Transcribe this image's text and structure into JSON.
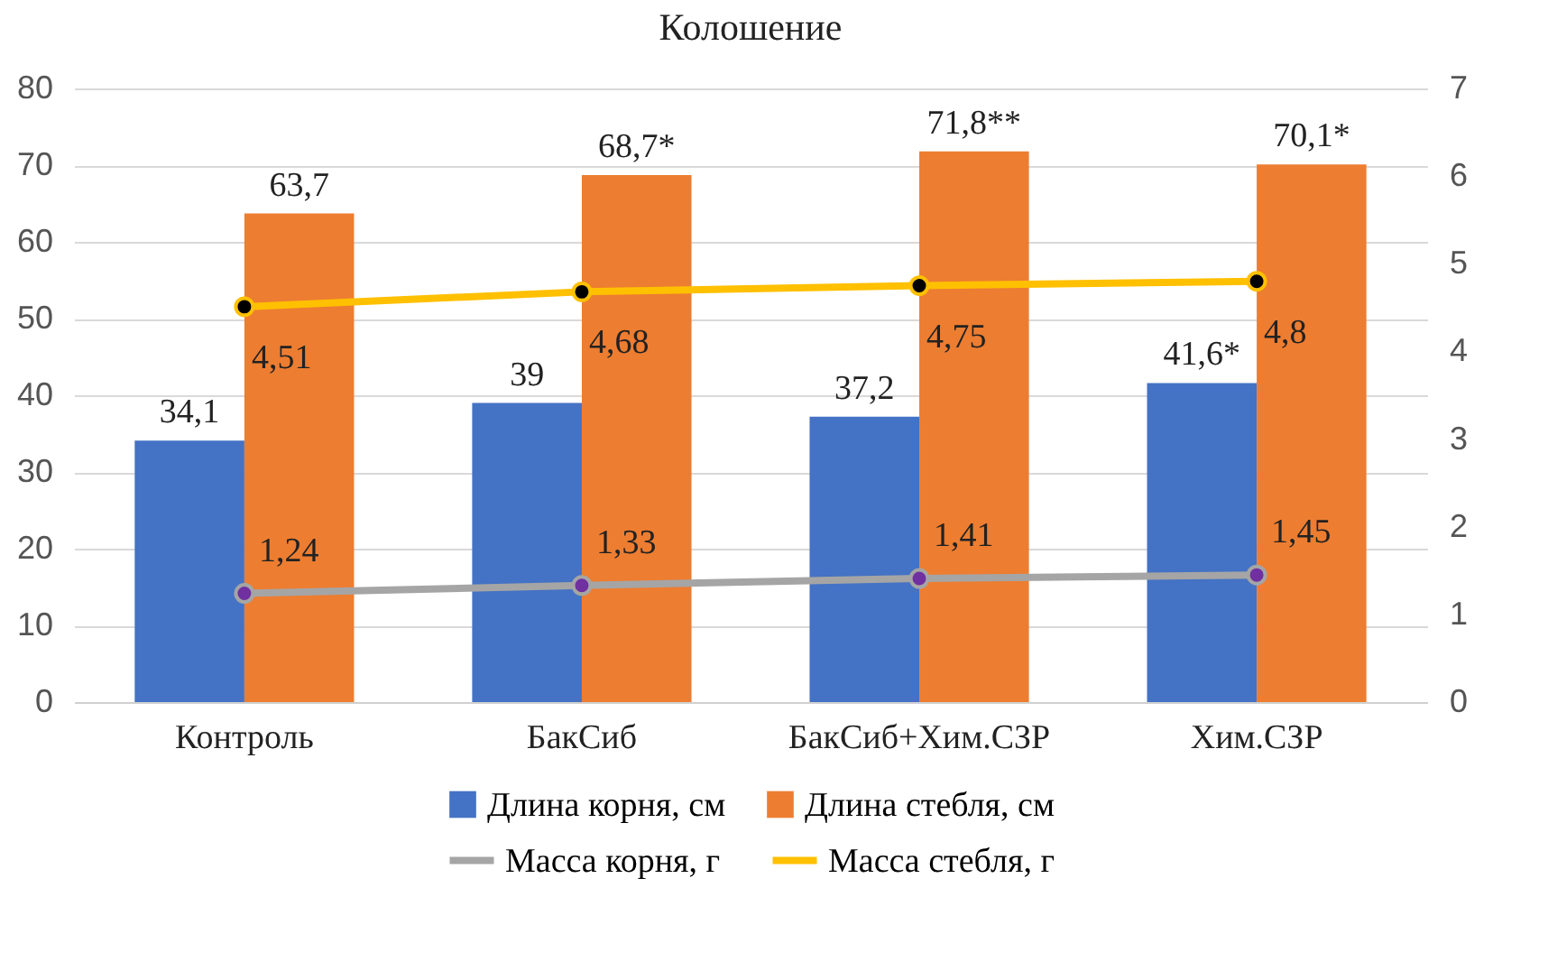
{
  "chart_data": {
    "type": "bar",
    "title": "Колошение",
    "categories": [
      "Контроль",
      "БакСиб",
      "БакСиб+Хим.СЗР",
      "Хим.СЗР"
    ],
    "series": [
      {
        "name": "Длина корня, см",
        "color": "#4472c4",
        "values": [
          34.1,
          39,
          37.2,
          41.6
        ],
        "value_labels": [
          "34,1",
          "39",
          "37,2",
          "41,6*"
        ]
      },
      {
        "name": "Длина стебля, см",
        "color": "#ed7d31",
        "values": [
          63.7,
          68.7,
          71.8,
          70.1
        ],
        "value_labels": [
          "63,7",
          "68,7*",
          "71,8**",
          "70,1*"
        ]
      },
      {
        "name": "Масса корня, г",
        "type": "line",
        "axis": "y2",
        "color": "#a5a5a5",
        "values": [
          1.24,
          1.33,
          1.41,
          1.45
        ],
        "value_labels": [
          "1,24",
          "1,33",
          "1,41",
          "1,45"
        ]
      },
      {
        "name": "Масса стебля, г",
        "type": "line",
        "axis": "y2",
        "color": "#ffc000",
        "values": [
          4.51,
          4.68,
          4.75,
          4.8
        ],
        "value_labels": [
          "4,51",
          "4,68",
          "4,75",
          "4,8"
        ]
      }
    ],
    "ylim": [
      0,
      80
    ],
    "yticks": [
      0,
      10,
      20,
      30,
      40,
      50,
      60,
      70,
      80
    ],
    "y2lim": [
      0,
      7
    ],
    "y2ticks": [
      0,
      1,
      2,
      3,
      4,
      5,
      6,
      7
    ],
    "grid": "y",
    "legend": "bottom",
    "marker": "circle",
    "line_style": "solid"
  }
}
